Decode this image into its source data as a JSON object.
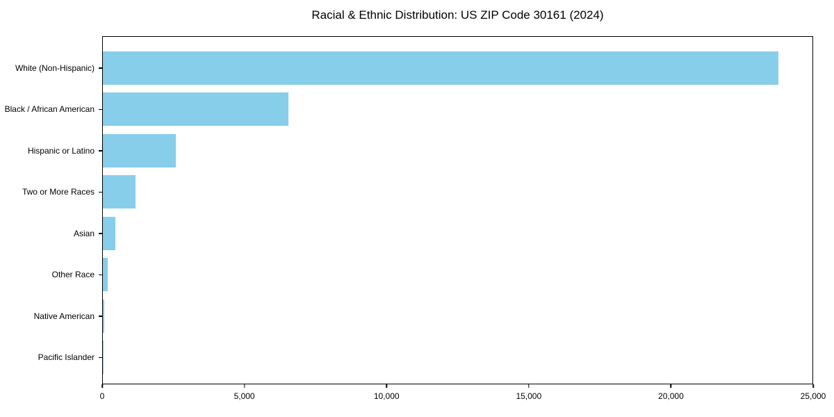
{
  "chart_data": {
    "type": "bar",
    "orientation": "horizontal",
    "title": "Racial & Ethnic Distribution: US ZIP Code 30161 (2024)",
    "categories": [
      "White (Non-Hispanic)",
      "Black / African American",
      "Hispanic or Latino",
      "Two or More Races",
      "Asian",
      "Other Race",
      "Native American",
      "Pacific Islander"
    ],
    "values": [
      23800,
      6540,
      2580,
      1160,
      430,
      160,
      40,
      10
    ],
    "xlabel": "",
    "ylabel": "",
    "xlim": [
      0,
      25000
    ],
    "x_ticks": [
      0,
      5000,
      10000,
      15000,
      20000,
      25000
    ],
    "x_tick_labels": [
      "0",
      "5,000",
      "10,000",
      "15,000",
      "20,000",
      "25,000"
    ],
    "bar_color": "#87CEEB",
    "axis_color": "#000000",
    "grid": false,
    "legend": "none"
  }
}
